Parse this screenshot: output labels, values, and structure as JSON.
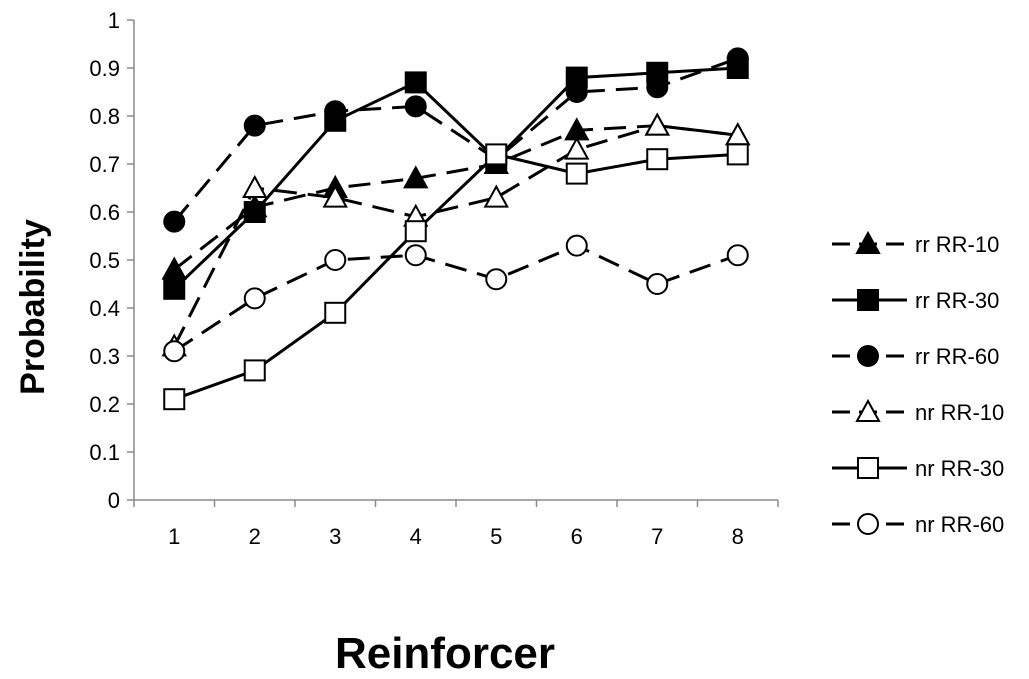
{
  "chart_data": {
    "type": "line",
    "xlabel": "Reinforcer",
    "ylabel": "Probability",
    "ylim": [
      0,
      1
    ],
    "xlim": [
      0.5,
      8.5
    ],
    "x": [
      1,
      2,
      3,
      4,
      5,
      6,
      7,
      8
    ],
    "y_ticks": [
      "0",
      "0.1",
      "0.2",
      "0.3",
      "0.4",
      "0.5",
      "0.6",
      "0.7",
      "0.8",
      "0.9",
      "1"
    ],
    "x_ticks": [
      "1",
      "2",
      "3",
      "4",
      "5",
      "6",
      "7",
      "8"
    ],
    "grid": false,
    "legend_position": "right",
    "series": [
      {
        "name": "rr RR-10",
        "values": [
          0.48,
          0.61,
          0.65,
          0.67,
          0.7,
          0.77,
          0.78,
          0.76
        ],
        "marker": "triangle",
        "filled": true,
        "dashed": true
      },
      {
        "name": "rr RR-30",
        "values": [
          0.44,
          0.6,
          0.79,
          0.87,
          0.71,
          0.88,
          0.89,
          0.9
        ],
        "marker": "square",
        "filled": true,
        "dashed": false
      },
      {
        "name": "rr RR-60",
        "values": [
          0.58,
          0.78,
          0.81,
          0.82,
          0.71,
          0.85,
          0.86,
          0.92
        ],
        "marker": "circle",
        "filled": true,
        "dashed": true
      },
      {
        "name": "nr RR-10",
        "values": [
          0.32,
          0.65,
          0.63,
          0.59,
          0.63,
          0.73,
          0.78,
          0.76
        ],
        "marker": "triangle",
        "filled": false,
        "dashed": true
      },
      {
        "name": "nr RR-30",
        "values": [
          0.21,
          0.27,
          0.39,
          0.56,
          0.72,
          0.68,
          0.71,
          0.72
        ],
        "marker": "square",
        "filled": false,
        "dashed": false
      },
      {
        "name": "nr RR-60",
        "values": [
          0.31,
          0.42,
          0.5,
          0.51,
          0.46,
          0.53,
          0.45,
          0.51
        ],
        "marker": "circle",
        "filled": false,
        "dashed": true
      }
    ]
  }
}
